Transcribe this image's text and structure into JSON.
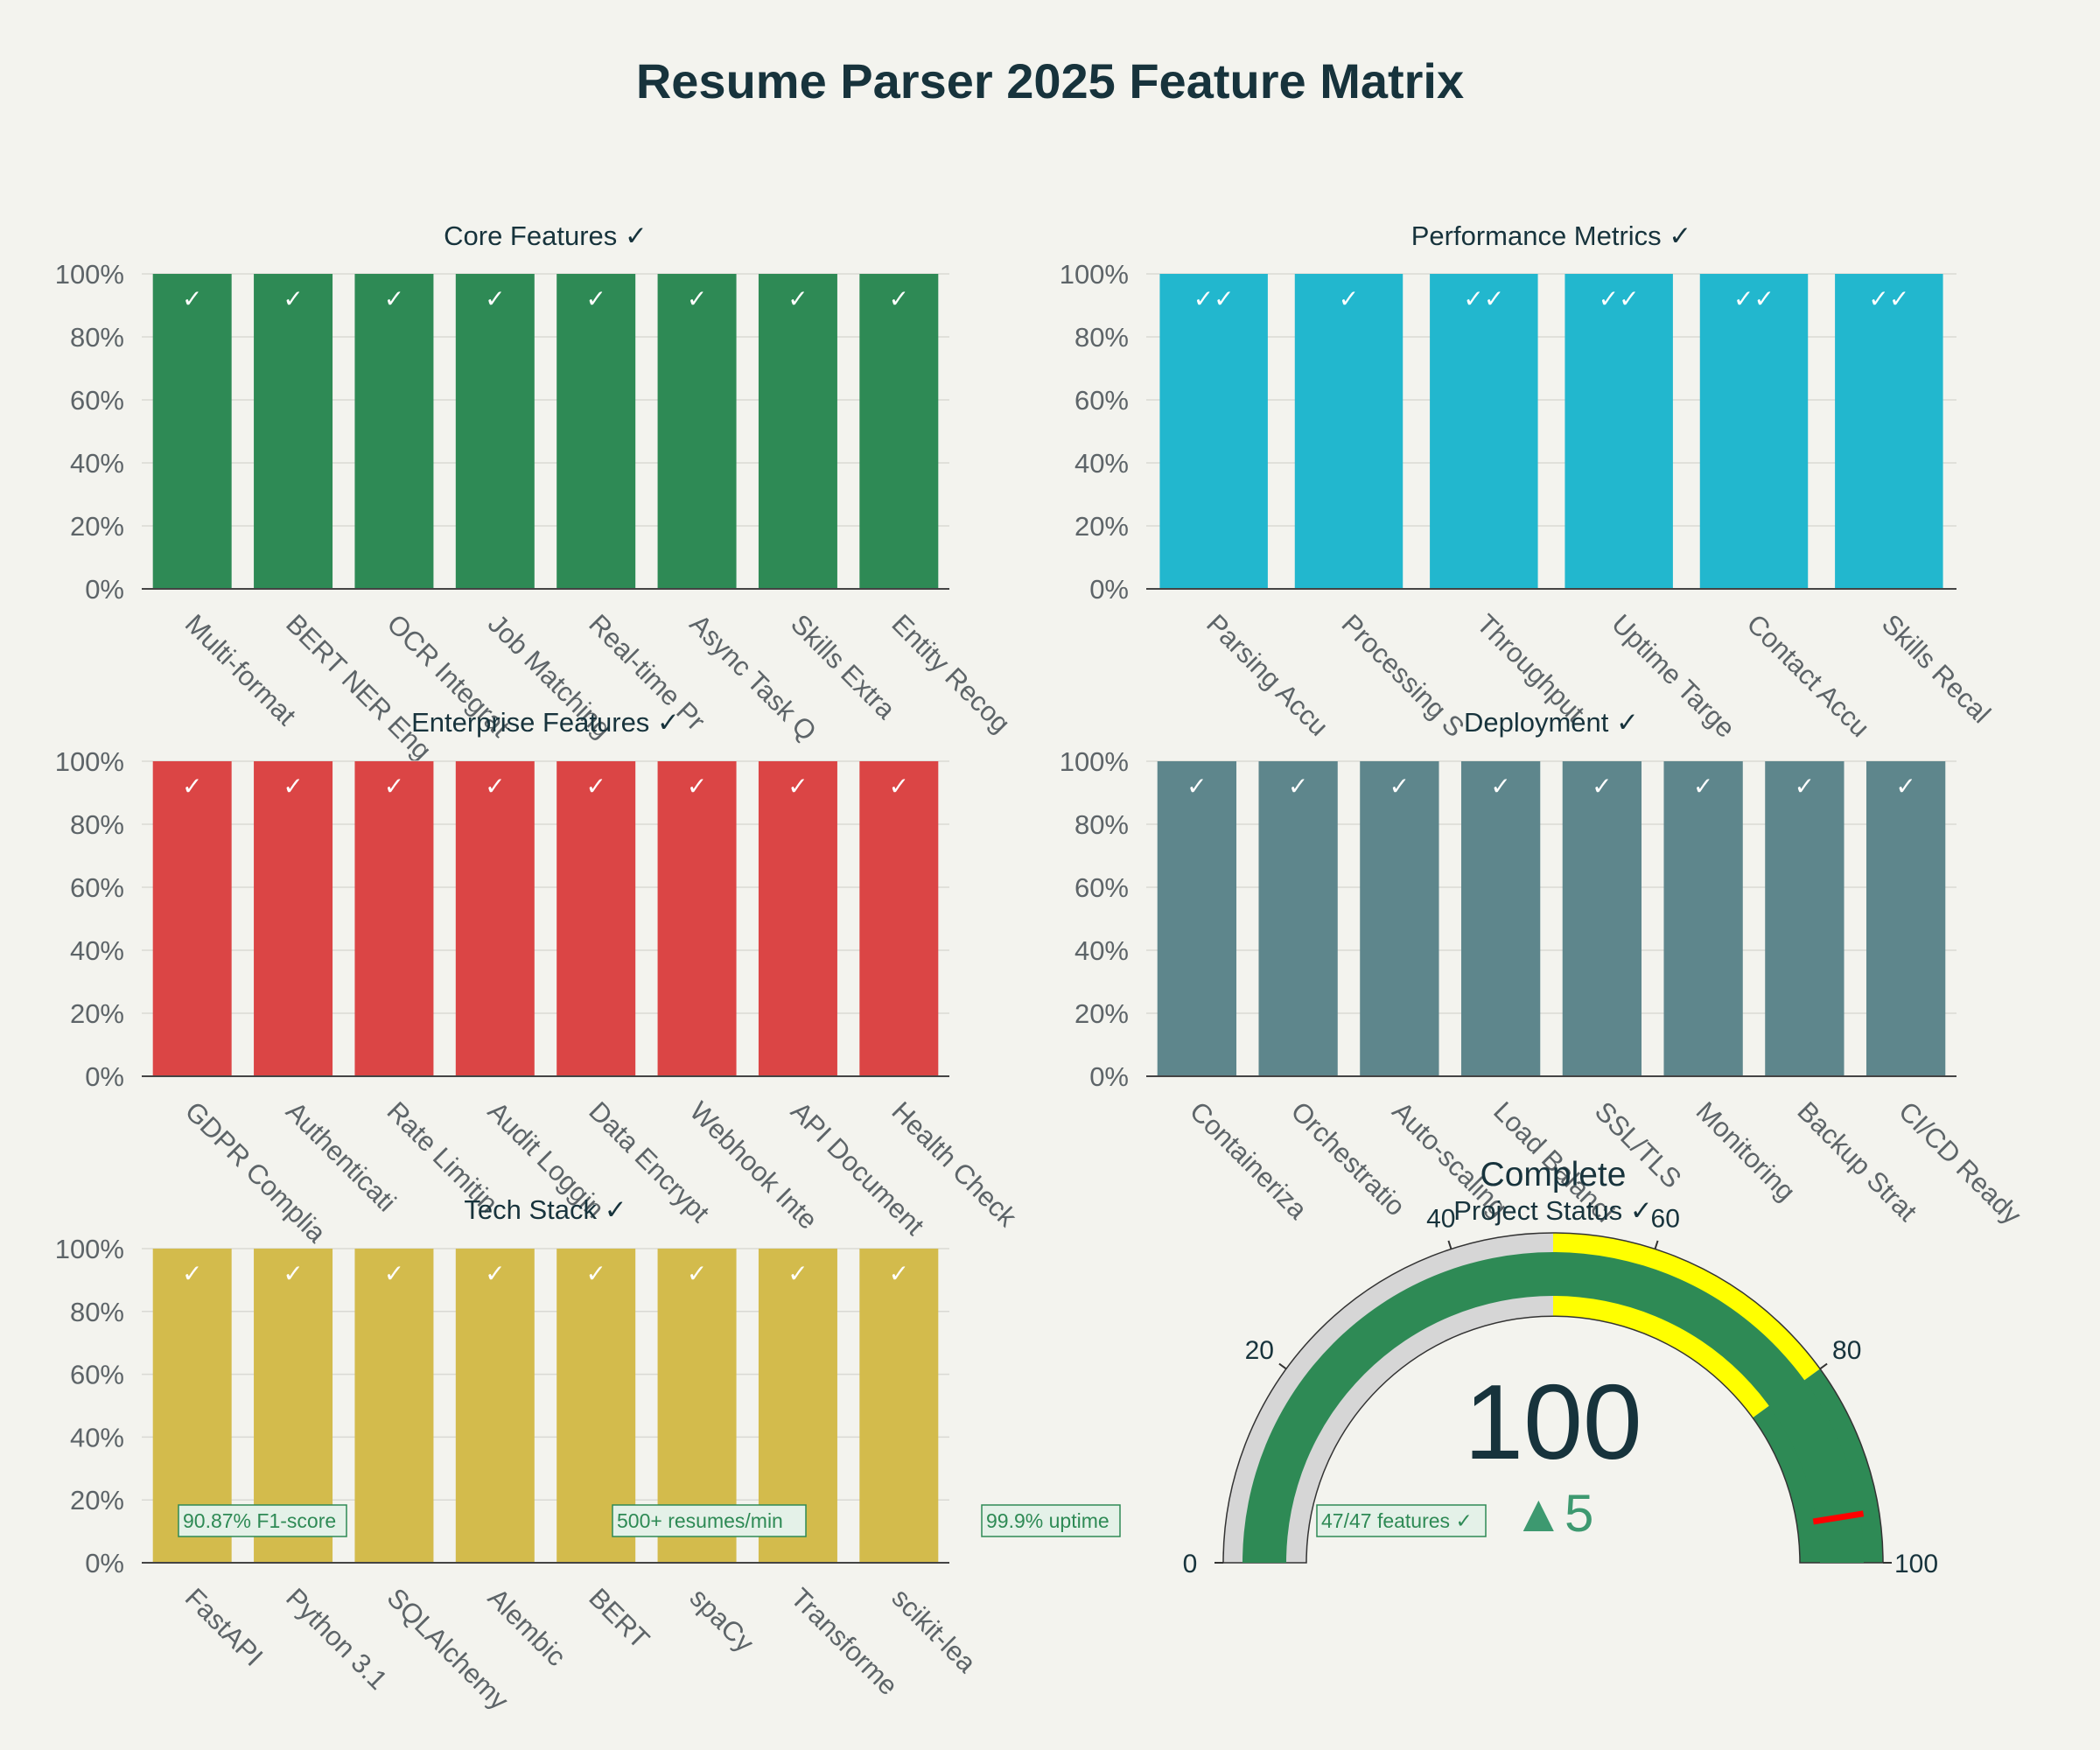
{
  "page": {
    "title": "Resume Parser 2025 Feature Matrix"
  },
  "colors": {
    "background": "#f3f3ee",
    "core": "#2e8a55",
    "performance": "#22b7ce",
    "enterprise": "#db4545",
    "deployment": "#5e868c",
    "tech": "#d3bb4c",
    "gauge_green": "#2e8a55",
    "gauge_yellow": "#ffff00",
    "gauge_grey": "#d6d6d6",
    "gauge_needle": "#ff0000",
    "delta_green": "#3d9970"
  },
  "chart_data": [
    {
      "type": "bar",
      "title": "Core Features ✓",
      "categories": [
        "Multi-format",
        "BERT NER Eng",
        "OCR Integrat",
        "Job Matching",
        "Real-time Pr",
        "Async Task Q",
        "Skills Extra",
        "Entity Recog"
      ],
      "values": [
        100,
        100,
        100,
        100,
        100,
        100,
        100,
        100
      ],
      "bar_labels": [
        "✓",
        "✓",
        "✓",
        "✓",
        "✓",
        "✓",
        "✓",
        "✓"
      ],
      "yticks": [
        "0%",
        "20%",
        "40%",
        "60%",
        "80%",
        "100%"
      ],
      "ylim": [
        0,
        100
      ],
      "color": "core",
      "grid": true
    },
    {
      "type": "bar",
      "title": "Performance Metrics ✓",
      "categories": [
        "Parsing Accu",
        "Processing S",
        "Throughput",
        "Uptime Targe",
        "Contact Accu",
        "Skills Recal"
      ],
      "values": [
        100,
        100,
        100,
        100,
        100,
        100
      ],
      "bar_labels": [
        "✓✓",
        "✓",
        "✓✓",
        "✓✓",
        "✓✓",
        "✓✓"
      ],
      "yticks": [
        "0%",
        "20%",
        "40%",
        "60%",
        "80%",
        "100%"
      ],
      "ylim": [
        0,
        100
      ],
      "color": "performance",
      "grid": true
    },
    {
      "type": "bar",
      "title": "Enterprise Features ✓",
      "categories": [
        "GDPR Complia",
        "Authenticati",
        "Rate Limitin",
        "Audit Loggin",
        "Data Encrypt",
        "Webhook Inte",
        "API Document",
        "Health Check"
      ],
      "values": [
        100,
        100,
        100,
        100,
        100,
        100,
        100,
        100
      ],
      "bar_labels": [
        "✓",
        "✓",
        "✓",
        "✓",
        "✓",
        "✓",
        "✓",
        "✓"
      ],
      "yticks": [
        "0%",
        "20%",
        "40%",
        "60%",
        "80%",
        "100%"
      ],
      "ylim": [
        0,
        100
      ],
      "color": "enterprise",
      "grid": true
    },
    {
      "type": "bar",
      "title": "Deployment ✓",
      "categories": [
        "Containeriza",
        "Orchestratio",
        "Auto-scaling",
        "Load Balanci",
        "SSL/TLS",
        "Monitoring",
        "Backup Strat",
        "CI/CD Ready"
      ],
      "values": [
        100,
        100,
        100,
        100,
        100,
        100,
        100,
        100
      ],
      "bar_labels": [
        "✓",
        "✓",
        "✓",
        "✓",
        "✓",
        "✓",
        "✓",
        "✓"
      ],
      "yticks": [
        "0%",
        "20%",
        "40%",
        "60%",
        "80%",
        "100%"
      ],
      "ylim": [
        0,
        100
      ],
      "color": "deployment",
      "grid": true
    },
    {
      "type": "bar",
      "title": "Tech Stack ✓",
      "categories": [
        "FastAPI",
        "Python 3.1",
        "SQLAlchemy",
        "Alembic",
        "BERT",
        "spaCy",
        "Transforme",
        "scikit-lea"
      ],
      "values": [
        100,
        100,
        100,
        100,
        100,
        100,
        100,
        100
      ],
      "bar_labels": [
        "✓",
        "✓",
        "✓",
        "✓",
        "✓",
        "✓",
        "✓",
        "✓"
      ],
      "yticks": [
        "0%",
        "20%",
        "40%",
        "60%",
        "80%",
        "100%"
      ],
      "ylim": [
        0,
        100
      ],
      "color": "tech",
      "grid": true
    },
    {
      "type": "gauge",
      "title": "Complete",
      "subtitle": "Project Status ✓",
      "value": 100,
      "value_text": "100",
      "delta": 5,
      "delta_text": "▲5",
      "range": [
        0,
        100
      ],
      "ticks": [
        0,
        20,
        40,
        60,
        80,
        100
      ],
      "tick_labels": [
        "0",
        "20",
        "40",
        "60",
        "80",
        "100"
      ],
      "steps": [
        {
          "from": 0,
          "to": 50,
          "color": "gauge_grey"
        },
        {
          "from": 50,
          "to": 80,
          "color": "gauge_yellow"
        },
        {
          "from": 80,
          "to": 100,
          "color": "gauge_green"
        }
      ],
      "threshold": 95
    }
  ],
  "annotations": [
    "90.87% F1-score",
    "500+ resumes/min",
    "99.9% uptime",
    "47/47 features ✓"
  ]
}
